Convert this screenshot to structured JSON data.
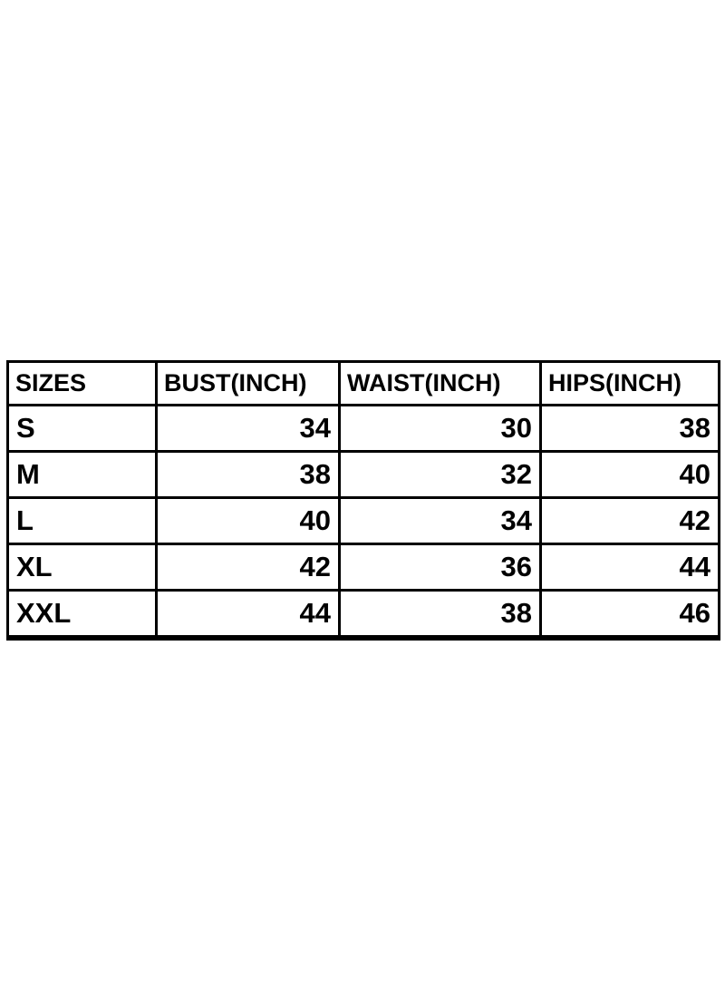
{
  "chart_data": {
    "type": "table",
    "columns": [
      "SIZES",
      "BUST(INCH)",
      "WAIST(INCH)",
      "HIPS(INCH)"
    ],
    "rows": [
      {
        "cells": [
          "S",
          "34",
          "30",
          "38"
        ]
      },
      {
        "cells": [
          "M",
          "38",
          "32",
          "40"
        ]
      },
      {
        "cells": [
          "L",
          "40",
          "34",
          "42"
        ]
      },
      {
        "cells": [
          "XL",
          "42",
          "36",
          "44"
        ]
      },
      {
        "cells": [
          "XXL",
          "44",
          "38",
          "46"
        ]
      }
    ],
    "layout": {
      "legend": "none",
      "grid": "all-borders",
      "header_position": "top-row",
      "value_alignment": "right"
    }
  },
  "colors": {
    "border": "#000000",
    "text": "#000000",
    "background": "#ffffff"
  }
}
